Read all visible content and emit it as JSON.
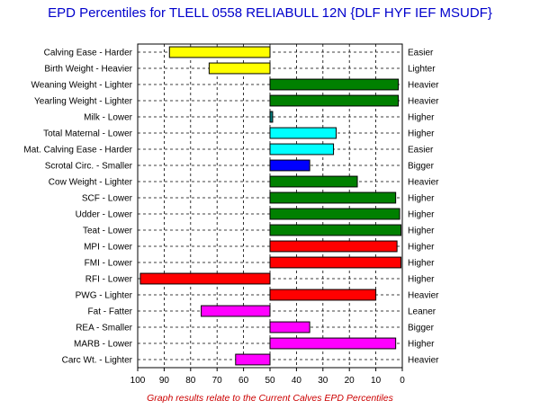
{
  "chart_data": {
    "type": "bar",
    "orientation": "horizontal",
    "title": "EPD Percentiles for TLELL 0558 RELIABULL 12N {DLF HYF IEF MSUDF}",
    "footnote": "Graph results relate to the Current Calves EPD Percentiles",
    "xlim": [
      100,
      0
    ],
    "baseline": 50,
    "grid": true,
    "x_ticks": [
      "100",
      "90",
      "80",
      "70",
      "60",
      "50",
      "40",
      "30",
      "20",
      "10",
      "0"
    ],
    "colors": {
      "yellow": "#ffff00",
      "green": "#008000",
      "teal": "#008080",
      "cyan": "#00ffff",
      "blue": "#0000ff",
      "red": "#ff0000",
      "magenta": "#ff00ff"
    },
    "rows": [
      {
        "left": "Calving Ease - Harder",
        "right": "Easier",
        "value": 88,
        "color": "#ffff00"
      },
      {
        "left": "Birth Weight - Heavier",
        "right": "Lighter",
        "value": 73,
        "color": "#ffff00"
      },
      {
        "left": "Weaning Weight - Lighter",
        "right": "Heavier",
        "value": 1.5,
        "color": "#008000"
      },
      {
        "left": "Yearling Weight - Lighter",
        "right": "Heavier",
        "value": 1.5,
        "color": "#008000"
      },
      {
        "left": "Milk - Lower",
        "right": "Higher",
        "value": 49,
        "color": "#008080"
      },
      {
        "left": "Total Maternal - Lower",
        "right": "Higher",
        "value": 25,
        "color": "#00ffff"
      },
      {
        "left": "Mat. Calving Ease - Harder",
        "right": "Easier",
        "value": 26,
        "color": "#00ffff"
      },
      {
        "left": "Scrotal Circ. - Smaller",
        "right": "Bigger",
        "value": 35,
        "color": "#0000ff"
      },
      {
        "left": "Cow Weight - Lighter",
        "right": "Heavier",
        "value": 17,
        "color": "#008000"
      },
      {
        "left": "SCF - Lower",
        "right": "Higher",
        "value": 2.5,
        "color": "#008000"
      },
      {
        "left": "Udder - Lower",
        "right": "Higher",
        "value": 1,
        "color": "#008000"
      },
      {
        "left": "Teat - Lower",
        "right": "Higher",
        "value": 0.5,
        "color": "#008000"
      },
      {
        "left": "MPI - Lower",
        "right": "Higher",
        "value": 2,
        "color": "#ff0000"
      },
      {
        "left": "FMI - Lower",
        "right": "Higher",
        "value": 0.5,
        "color": "#ff0000"
      },
      {
        "left": "RFI - Lower",
        "right": "Higher",
        "value": 99,
        "color": "#ff0000"
      },
      {
        "left": "PWG - Lighter",
        "right": "Heavier",
        "value": 10,
        "color": "#ff0000"
      },
      {
        "left": "Fat - Fatter",
        "right": "Leaner",
        "value": 76,
        "color": "#ff00ff"
      },
      {
        "left": "REA - Smaller",
        "right": "Bigger",
        "value": 35,
        "color": "#ff00ff"
      },
      {
        "left": "MARB - Lower",
        "right": "Higher",
        "value": 2.5,
        "color": "#ff00ff"
      },
      {
        "left": "Carc Wt. - Lighter",
        "right": "Heavier",
        "value": 63,
        "color": "#ff00ff"
      }
    ]
  }
}
